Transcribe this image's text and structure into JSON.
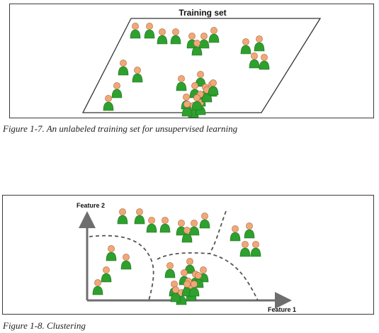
{
  "figure1": {
    "title": "Training set",
    "caption": "Figure 1-7. An unlabeled training set for unsupervised learning",
    "person_count": 29
  },
  "figure2": {
    "y_axis_label": "Feature 2",
    "x_axis_label": "Feature 1",
    "caption": "Figure 1-8. Clustering",
    "person_count": 29,
    "cluster_count": 4
  },
  "colors": {
    "frame_border": "#3a3a3a",
    "person_head": "#f0a878",
    "person_body": "#2ea02e",
    "dashed_boundary": "#555555",
    "axis": "#6e6e6e"
  },
  "icons": [
    "person-icon",
    "axis-arrow-icon"
  ]
}
